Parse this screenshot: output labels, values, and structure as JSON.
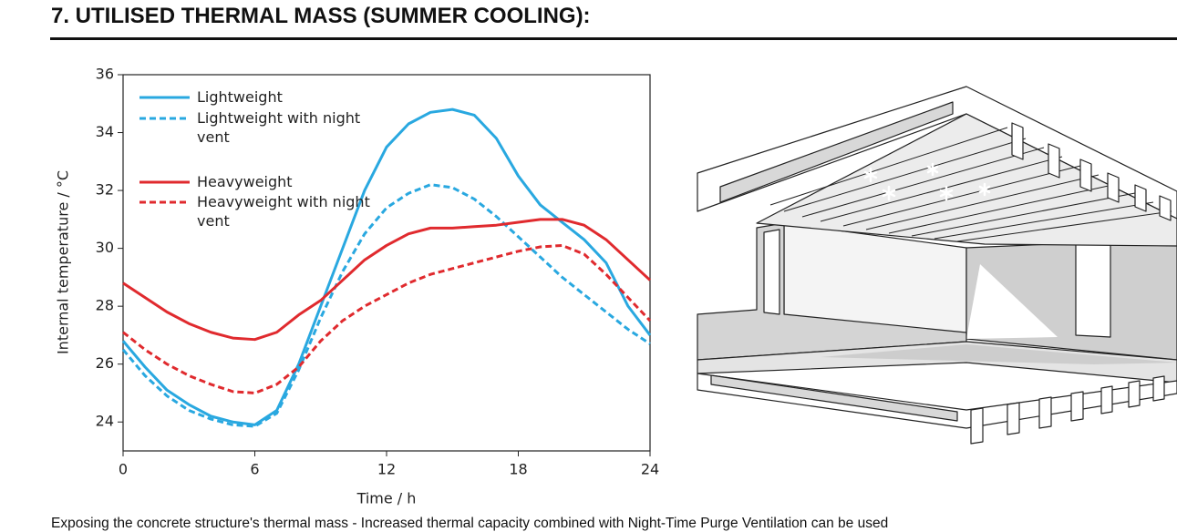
{
  "heading": "7. UTILISED THERMAL MASS (SUMMER COOLING):",
  "caption": "Exposing the concrete structure's thermal mass - Increased thermal capacity combined with Night-Time Purge Ventilation can be used",
  "chart_data": {
    "type": "line",
    "x_label": "Time / h",
    "y_label": "Internal temperature / °C",
    "x": [
      0,
      1,
      2,
      3,
      4,
      5,
      6,
      7,
      8,
      9,
      10,
      11,
      12,
      13,
      14,
      15,
      16,
      17,
      18,
      19,
      20,
      21,
      22,
      23,
      24
    ],
    "xlim": [
      0,
      24
    ],
    "xticks": [
      0,
      6,
      12,
      18,
      24
    ],
    "ylim": [
      23,
      36
    ],
    "yticks": [
      24,
      26,
      28,
      30,
      32,
      34,
      36
    ],
    "series": [
      {
        "name": "Lightweight",
        "color": "#29a8e0",
        "dashed": false,
        "values": [
          26.8,
          25.9,
          25.1,
          24.6,
          24.2,
          24.0,
          23.9,
          24.4,
          26.0,
          28.0,
          30.0,
          32.0,
          33.5,
          34.3,
          34.7,
          34.8,
          34.6,
          33.8,
          32.5,
          31.5,
          30.9,
          30.3,
          29.5,
          28.0,
          27.0
        ]
      },
      {
        "name": "Lightweight with night vent",
        "color": "#29a8e0",
        "dashed": true,
        "values": [
          26.5,
          25.6,
          24.9,
          24.4,
          24.1,
          23.9,
          23.85,
          24.3,
          25.8,
          27.6,
          29.2,
          30.5,
          31.4,
          31.9,
          32.2,
          32.1,
          31.7,
          31.1,
          30.4,
          29.7,
          29.0,
          28.4,
          27.8,
          27.2,
          26.7
        ]
      },
      {
        "name": "Heavyweight",
        "color": "#e02a2e",
        "dashed": false,
        "values": [
          28.8,
          28.3,
          27.8,
          27.4,
          27.1,
          26.9,
          26.85,
          27.1,
          27.7,
          28.2,
          28.9,
          29.6,
          30.1,
          30.5,
          30.7,
          30.7,
          30.75,
          30.8,
          30.9,
          31.0,
          31.0,
          30.8,
          30.3,
          29.6,
          28.9
        ]
      },
      {
        "name": "Heavyweight with night vent",
        "color": "#e02a2e",
        "dashed": true,
        "values": [
          27.1,
          26.5,
          26.0,
          25.6,
          25.3,
          25.05,
          25.0,
          25.3,
          25.9,
          26.8,
          27.5,
          28.0,
          28.4,
          28.8,
          29.1,
          29.3,
          29.5,
          29.7,
          29.9,
          30.05,
          30.1,
          29.8,
          29.1,
          28.3,
          27.5
        ]
      }
    ]
  }
}
